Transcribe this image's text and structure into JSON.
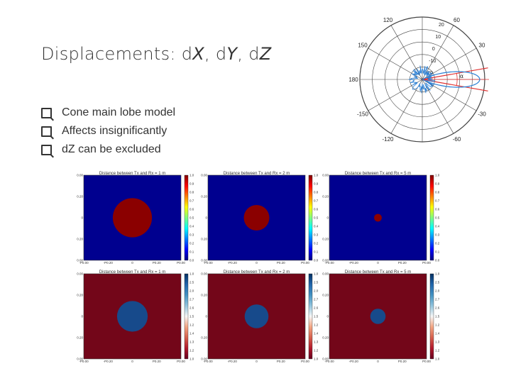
{
  "slide": {
    "title_prefix": "Displacements: d",
    "title_x": "X",
    "title_sep1": ", d",
    "title_y": "Y",
    "title_sep2": ", d",
    "title_z": "Z",
    "bullets": [
      "Cone main lobe model",
      "Affects insignificantly",
      "dZ can be excluded"
    ]
  },
  "polar": {
    "angle_labels": [
      "120",
      "60",
      "150",
      "30",
      "180",
      "-150",
      "-30",
      "-120",
      "-60"
    ],
    "radial_labels": [
      "20",
      "10",
      "0",
      "-10",
      "-20"
    ],
    "alpha_label": "α",
    "colors": {
      "pattern": "#2a7fd4",
      "cone": "#e03030"
    }
  },
  "panels_top": [
    {
      "title": "Distance between Tx and Rx = 1 m",
      "radius_frac": 0.23,
      "ticks_y": [
        "P0.00",
        "P0.20",
        "0",
        "-P0.20",
        "-P0.00"
      ],
      "ticks_x": [
        "-P0.00",
        "-P0.20",
        "0",
        "P0.20",
        "P0.00"
      ]
    },
    {
      "title": "Distance between Tx and Rx = 2 m",
      "radius_frac": 0.15,
      "ticks_y": [
        "P0.00",
        "P0.20",
        "0",
        "-P0.20",
        "-P0.00"
      ],
      "ticks_x": [
        "-P0.00",
        "-P0.20",
        "0",
        "P0.20",
        "P0.00"
      ]
    },
    {
      "title": "Distance between Tx and Rx = 5 m",
      "radius_frac": 0.045,
      "ticks_y": [
        "P0.00",
        "P0.20",
        "0",
        "-P0.20",
        "-P0.00"
      ],
      "ticks_x": [
        "-P0.00",
        "-P0.20",
        "0",
        "P0.20",
        "P0.00"
      ]
    }
  ],
  "panels_bottom": [
    {
      "title": "Distance between Tx and Rx = 1 m",
      "radius_frac": 0.18,
      "ticks_y": [
        "P0.00",
        "P0.20",
        "0",
        "-P0.20",
        "-P0.00"
      ],
      "ticks_x": [
        "-P0.00",
        "-P0.20",
        "0",
        "P0.20",
        "P0.00"
      ]
    },
    {
      "title": "Distance between Tx and Rx = 2 m",
      "radius_frac": 0.14,
      "ticks_y": [
        "P0.00",
        "P0.20",
        "0",
        "-P0.20",
        "-P0.00"
      ],
      "ticks_x": [
        "-P0.00",
        "-P0.20",
        "0",
        "P0.20",
        "P0.00"
      ]
    },
    {
      "title": "Distance between Tx and Rx = 5 m",
      "radius_frac": 0.09,
      "ticks_y": [
        "P0.00",
        "P0.20",
        "0",
        "-P0.20",
        "-P0.00"
      ],
      "ticks_x": [
        "-P0.00",
        "-P0.20",
        "0",
        "P0.20",
        "P0.00"
      ]
    }
  ],
  "colorbar_top": [
    "1.0",
    "0.9",
    "0.8",
    "0.7",
    "0.6",
    "0.5",
    "0.4",
    "0.3",
    "0.2",
    "0.1",
    "0.0"
  ],
  "colorbar_bottom": [
    "1.0",
    "2.5",
    "2.0",
    "2.7",
    "2.6",
    "1.5",
    "1.2",
    "1.4",
    "1.3",
    "1.2",
    "1.0"
  ],
  "colors": {
    "jet_bg": "#00008f",
    "jet_spot": "#8b0000",
    "rdbu_bg": "#730619",
    "rdbu_spot": "#174a8b"
  }
}
